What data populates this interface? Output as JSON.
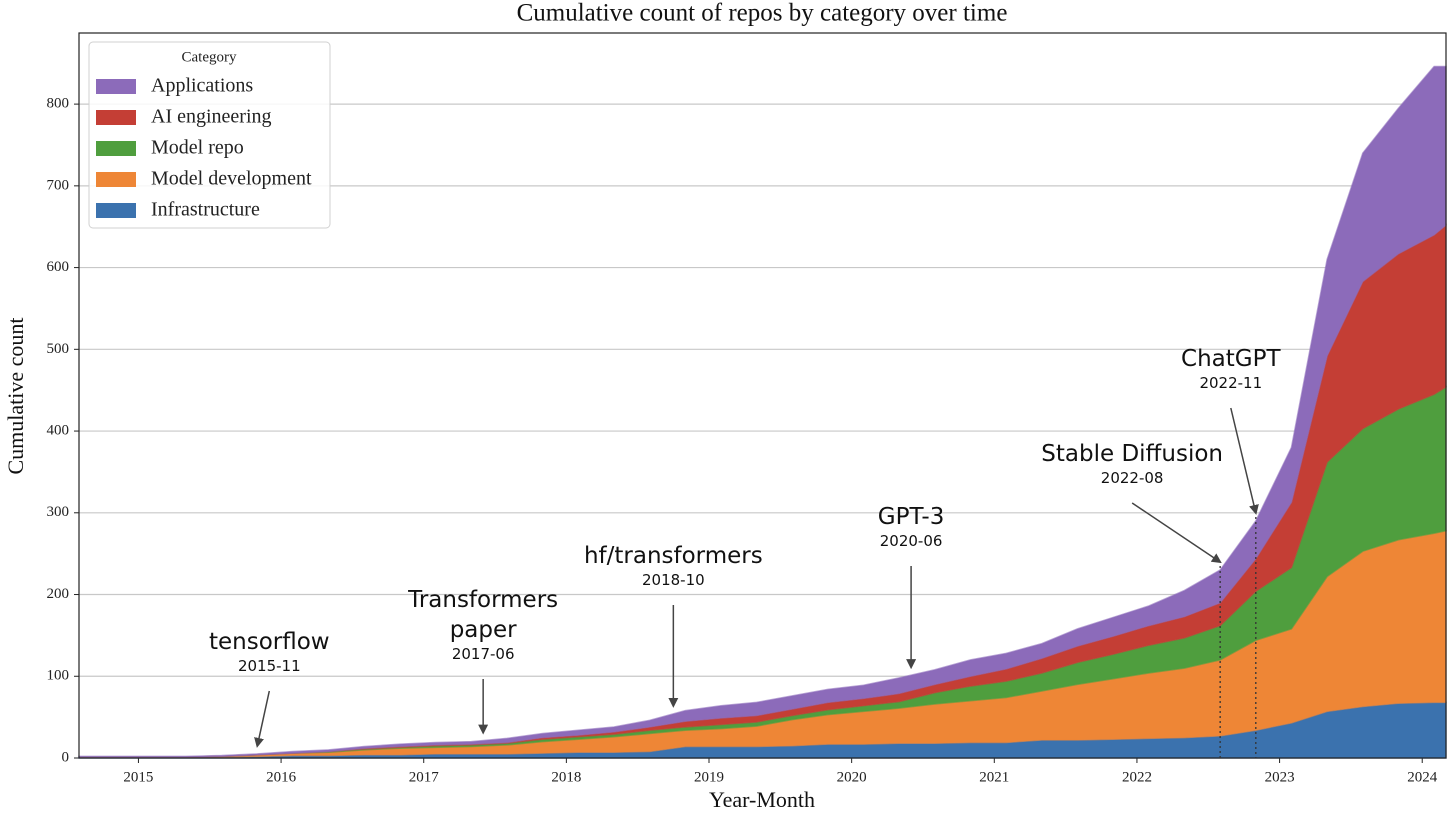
{
  "chart_data": {
    "type": "stacked-area",
    "title": "Cumulative count of repos by category over time",
    "x_label": "Year-Month",
    "y_label": "Cumulative count",
    "legend_title": "Category",
    "legend": "upper left",
    "grid": true,
    "x": [
      "2014-08",
      "2014-11",
      "2015-02",
      "2015-05",
      "2015-08",
      "2015-11",
      "2016-02",
      "2016-05",
      "2016-08",
      "2016-11",
      "2017-02",
      "2017-05",
      "2017-08",
      "2017-11",
      "2018-02",
      "2018-05",
      "2018-08",
      "2018-11",
      "2019-02",
      "2019-05",
      "2019-08",
      "2019-11",
      "2020-02",
      "2020-05",
      "2020-08",
      "2020-11",
      "2021-02",
      "2021-05",
      "2021-08",
      "2021-11",
      "2022-02",
      "2022-05",
      "2022-08",
      "2022-11",
      "2023-02",
      "2023-05",
      "2023-08",
      "2023-11",
      "2024-02",
      "2024-03"
    ],
    "xlim": [
      "2014-08",
      "2024-03"
    ],
    "xticks": [
      {
        "value": "2015-01",
        "label": "2015"
      },
      {
        "value": "2016-01",
        "label": "2016"
      },
      {
        "value": "2017-01",
        "label": "2017"
      },
      {
        "value": "2018-01",
        "label": "2018"
      },
      {
        "value": "2019-01",
        "label": "2019"
      },
      {
        "value": "2020-01",
        "label": "2020"
      },
      {
        "value": "2021-01",
        "label": "2021"
      },
      {
        "value": "2022-01",
        "label": "2022"
      },
      {
        "value": "2023-01",
        "label": "2023"
      },
      {
        "value": "2024-01",
        "label": "2024"
      }
    ],
    "ylim": [
      0,
      887
    ],
    "yticks": [
      0,
      100,
      200,
      300,
      400,
      500,
      600,
      700,
      800
    ],
    "series": [
      {
        "name": "Infrastructure",
        "color": "#3b72ae",
        "values": [
          1,
          1,
          1,
          1,
          1,
          2,
          3,
          3,
          4,
          4,
          5,
          5,
          5,
          6,
          7,
          7,
          8,
          14,
          14,
          14,
          15,
          17,
          17,
          18,
          18,
          19,
          19,
          22,
          22,
          23,
          24,
          25,
          27,
          34,
          43,
          57,
          63,
          67,
          68,
          68
        ]
      },
      {
        "name": "Model development",
        "color": "#ee8636",
        "values": [
          0,
          0,
          0,
          0,
          1,
          2,
          3,
          4,
          6,
          8,
          8,
          9,
          11,
          14,
          16,
          19,
          22,
          20,
          22,
          25,
          32,
          36,
          40,
          43,
          48,
          51,
          55,
          60,
          68,
          74,
          80,
          85,
          93,
          110,
          115,
          165,
          190,
          200,
          207,
          210
        ]
      },
      {
        "name": "Model repo",
        "color": "#4f9e3e",
        "values": [
          0,
          0,
          0,
          0,
          0,
          0,
          0,
          1,
          1,
          1,
          2,
          2,
          2,
          3,
          3,
          3,
          4,
          4,
          5,
          5,
          5,
          6,
          7,
          8,
          14,
          18,
          20,
          22,
          27,
          30,
          34,
          37,
          42,
          60,
          75,
          140,
          150,
          160,
          170,
          176
        ]
      },
      {
        "name": "AI engineering",
        "color": "#c43e35",
        "values": [
          0,
          0,
          0,
          0,
          0,
          0,
          0,
          0,
          1,
          1,
          1,
          1,
          1,
          2,
          2,
          3,
          4,
          7,
          8,
          8,
          8,
          9,
          9,
          10,
          10,
          12,
          15,
          18,
          20,
          22,
          24,
          26,
          28,
          40,
          80,
          130,
          180,
          190,
          195,
          198
        ]
      },
      {
        "name": "Applications",
        "color": "#8c6bba",
        "values": [
          1,
          1,
          1,
          1,
          1,
          1,
          2,
          2,
          2,
          3,
          3,
          3,
          5,
          5,
          6,
          6,
          8,
          13,
          15,
          16,
          16,
          16,
          16,
          19,
          18,
          20,
          19,
          18,
          21,
          23,
          24,
          32,
          40,
          46,
          67,
          118,
          157,
          178,
          206,
          194
        ]
      }
    ],
    "annotations": [
      {
        "text": "tensorflow",
        "date": "2015-11"
      },
      {
        "text": "Transformers paper",
        "date": "2017-06"
      },
      {
        "text": "hf/transformers",
        "date": "2018-10"
      },
      {
        "text": "GPT-3",
        "date": "2020-06"
      },
      {
        "text": "Stable Diffusion",
        "date": "2022-08",
        "vline": true
      },
      {
        "text": "ChatGPT",
        "date": "2022-11",
        "vline": true
      }
    ]
  }
}
